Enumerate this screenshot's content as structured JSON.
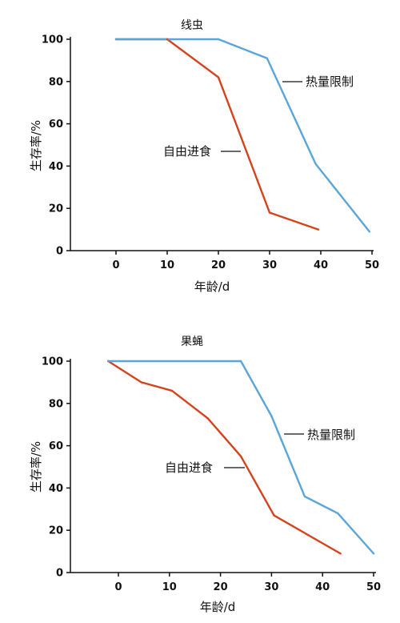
{
  "chart_data": [
    {
      "type": "line",
      "title": "线虫",
      "xlabel": "年龄/d",
      "ylabel": "生存率/%",
      "xlim": [
        -9,
        50
      ],
      "ylim": [
        0,
        100
      ],
      "xticks": [
        0,
        10,
        20,
        30,
        40,
        50
      ],
      "yticks": [
        0,
        20,
        40,
        60,
        80,
        100
      ],
      "grid": false,
      "series": [
        {
          "name": "自由进食",
          "color": "#d4441c",
          "points": [
            [
              0,
              100
            ],
            [
              10,
              100
            ],
            [
              20,
              82
            ],
            [
              30,
              18
            ],
            [
              39.5,
              10
            ]
          ]
        },
        {
          "name": "热量限制",
          "color": "#5aa6d6",
          "points": [
            [
              0,
              100
            ],
            [
              20,
              100
            ],
            [
              29.5,
              91
            ],
            [
              39,
              41
            ],
            [
              49.5,
              9
            ]
          ]
        }
      ]
    },
    {
      "type": "line",
      "title": "果蝇",
      "xlabel": "年龄/d",
      "ylabel": "生存率/%",
      "xlim": [
        -9,
        50
      ],
      "ylim": [
        0,
        100
      ],
      "xticks": [
        0,
        10,
        20,
        30,
        40,
        50
      ],
      "yticks": [
        0,
        20,
        40,
        60,
        80,
        100
      ],
      "grid": false,
      "series": [
        {
          "name": "自由进食",
          "color": "#d4441c",
          "points": [
            [
              -2,
              100
            ],
            [
              4.5,
              90
            ],
            [
              10.5,
              86
            ],
            [
              17.5,
              73
            ],
            [
              24,
              55
            ],
            [
              30.5,
              27
            ],
            [
              43.5,
              9
            ]
          ]
        },
        {
          "name": "热量限制",
          "color": "#5aa6d6",
          "points": [
            [
              -2,
              100
            ],
            [
              24,
              100
            ],
            [
              30,
              74
            ],
            [
              36.5,
              36
            ],
            [
              43,
              28
            ],
            [
              50,
              9
            ]
          ]
        }
      ]
    }
  ]
}
